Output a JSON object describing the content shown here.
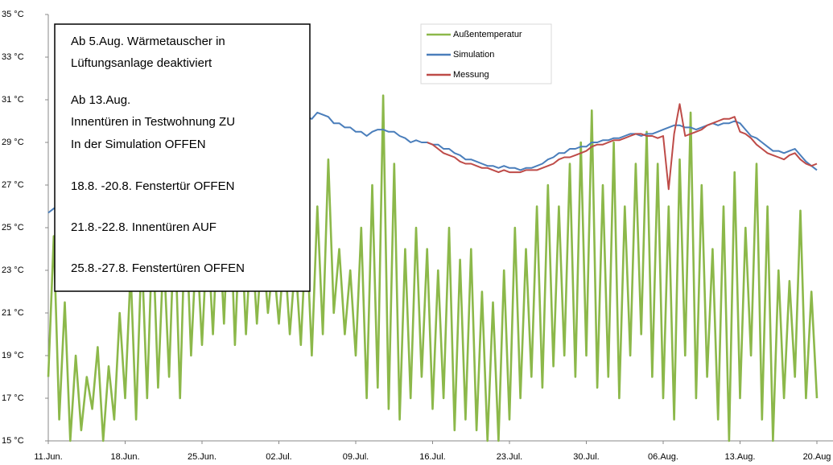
{
  "chart_data": {
    "type": "line",
    "annotations": [
      "Ab 5.Aug. Wärmetauscher in",
      "Lüftungsanlage deaktiviert",
      "Ab 13.Aug.",
      "Innentüren in Testwohnung ZU",
      "In der Simulation OFFEN",
      "18.8. -20.8. Fenstertür OFFEN",
      "21.8.-22.8. Innentüren AUF",
      "25.8.-27.8. Fenstertüren OFFEN"
    ],
    "x": [
      0,
      0.5,
      1,
      1.5,
      2,
      2.5,
      3,
      3.5,
      4,
      4.5,
      5,
      5.5,
      6,
      6.5,
      7,
      7.5,
      8,
      8.5,
      9,
      9.5,
      10,
      10.5,
      11,
      11.5,
      12,
      12.5,
      13,
      13.5,
      14,
      14.5,
      15,
      15.5,
      16,
      16.5,
      17,
      17.5,
      18,
      18.5,
      19,
      19.5,
      20,
      20.5,
      21,
      21.5,
      22,
      22.5,
      23,
      23.5,
      24,
      24.5,
      25,
      25.5,
      26,
      26.5,
      27,
      27.5,
      28,
      28.5,
      29,
      29.5,
      30,
      30.5,
      31,
      31.5,
      32,
      32.5,
      33,
      33.5,
      34,
      34.5,
      35,
      35.5,
      36,
      36.5,
      37,
      37.5,
      38,
      38.5,
      39,
      39.5,
      40,
      40.5,
      41,
      41.5,
      42,
      42.5,
      43,
      43.5,
      44,
      44.5,
      45,
      45.5,
      46,
      46.5,
      47,
      47.5,
      48,
      48.5,
      49,
      49.5,
      50,
      50.5,
      51,
      51.5,
      52,
      52.5,
      53,
      53.5,
      54,
      54.5,
      55,
      55.5,
      56,
      56.5,
      57,
      57.5,
      58,
      58.5,
      59,
      59.5,
      60,
      60.5,
      61,
      61.5,
      62,
      62.5,
      63,
      63.5,
      64,
      64.5,
      65,
      65.5,
      66,
      66.5,
      67,
      67.5,
      68,
      68.5,
      69,
      69.5,
      70
    ],
    "xlim": [
      0,
      70
    ],
    "xticks": [
      {
        "value": 0,
        "label": "11.Jun."
      },
      {
        "value": 7,
        "label": "18.Jun."
      },
      {
        "value": 14,
        "label": "25.Jun."
      },
      {
        "value": 21,
        "label": "02.Jul."
      },
      {
        "value": 28,
        "label": "09.Jul."
      },
      {
        "value": 35,
        "label": "16.Jul."
      },
      {
        "value": 42,
        "label": "23.Jul."
      },
      {
        "value": 49,
        "label": "30.Jul."
      },
      {
        "value": 56,
        "label": "06.Aug."
      },
      {
        "value": 63,
        "label": "13.Aug."
      },
      {
        "value": 70,
        "label": "20.Aug"
      }
    ],
    "ylim": [
      15,
      35
    ],
    "yticks": [
      {
        "value": 15,
        "label": "15 °C"
      },
      {
        "value": 17,
        "label": "17 °C"
      },
      {
        "value": 19,
        "label": "19 °C"
      },
      {
        "value": 21,
        "label": "21 °C"
      },
      {
        "value": 23,
        "label": "23 °C"
      },
      {
        "value": 25,
        "label": "25 °C"
      },
      {
        "value": 27,
        "label": "27 °C"
      },
      {
        "value": 29,
        "label": "29 °C"
      },
      {
        "value": 31,
        "label": "31 °C"
      },
      {
        "value": 33,
        "label": "33 °C"
      },
      {
        "value": 35,
        "label": "35 °C"
      }
    ],
    "series": [
      {
        "name": "Außentemperatur",
        "color": "#8cb84a",
        "values": [
          18,
          24.6,
          16,
          21.5,
          15,
          19,
          15.5,
          18,
          16.5,
          19.4,
          15,
          18.5,
          16,
          21,
          17,
          23,
          16,
          24,
          17,
          25,
          17.5,
          24,
          18,
          25.5,
          17,
          26,
          19,
          24.5,
          19.5,
          25,
          20,
          26,
          20.5,
          27,
          19.5,
          26,
          20,
          25,
          20.5,
          24.5,
          21,
          23.5,
          20.5,
          24,
          20,
          23.5,
          19.5,
          25,
          19,
          26,
          20,
          28.2,
          21,
          24,
          20,
          23,
          19,
          25,
          17,
          27,
          17.5,
          31.2,
          16.5,
          28,
          16,
          24,
          17,
          25,
          18,
          24,
          16.5,
          23,
          17,
          25,
          15.5,
          23.5,
          16,
          24,
          15.5,
          22,
          15,
          21.5,
          15,
          23,
          16,
          25,
          17,
          24,
          18,
          26,
          17.5,
          27,
          18.5,
          26,
          19,
          28,
          18,
          29,
          19,
          30.5,
          17.5,
          27,
          18,
          29,
          17,
          26,
          19,
          28,
          20,
          29.5,
          18,
          28,
          17,
          26,
          16,
          28.2,
          19,
          30.4,
          17,
          27,
          18,
          24,
          16,
          26,
          15,
          27.6,
          17,
          25,
          19,
          28,
          16,
          26,
          15,
          23,
          17,
          22.5,
          18,
          25.8,
          17,
          22,
          17
        ]
      },
      {
        "name": "Simulation",
        "color": "#4a7ebb",
        "values": [
          25.7,
          25.9,
          26,
          26.2,
          26.3,
          26.4,
          26.5,
          26.7,
          26.8,
          26.9,
          27,
          27.2,
          27.3,
          27.4,
          27.5,
          27.7,
          27.8,
          27.9,
          28,
          28.1,
          28.2,
          28.3,
          28.4,
          28.5,
          28.6,
          28.7,
          28.8,
          28.9,
          29,
          29.1,
          29.2,
          29.3,
          29.4,
          29.5,
          29.5,
          29.6,
          29.6,
          29.7,
          29.7,
          29.8,
          29.8,
          29.9,
          29.9,
          30,
          30,
          30.1,
          30.1,
          30.2,
          30.1,
          30.4,
          30.3,
          30.2,
          29.9,
          29.9,
          29.7,
          29.7,
          29.5,
          29.5,
          29.3,
          29.5,
          29.6,
          29.6,
          29.5,
          29.5,
          29.3,
          29.2,
          29.0,
          29.1,
          29.0,
          29.0,
          28.9,
          28.9,
          28.7,
          28.7,
          28.5,
          28.4,
          28.2,
          28.2,
          28.1,
          28.0,
          27.9,
          27.9,
          27.8,
          27.9,
          27.8,
          27.8,
          27.7,
          27.8,
          27.8,
          27.9,
          28.0,
          28.2,
          28.3,
          28.5,
          28.5,
          28.7,
          28.7,
          28.8,
          28.8,
          29.0,
          29.0,
          29.1,
          29.1,
          29.2,
          29.2,
          29.3,
          29.4,
          29.4,
          29.3,
          29.4,
          29.4,
          29.5,
          29.6,
          29.7,
          29.8,
          29.8,
          29.7,
          29.7,
          29.6,
          29.7,
          29.8,
          29.9,
          29.8,
          29.9,
          29.9,
          30.0,
          29.9,
          29.6,
          29.3,
          29.2,
          29.0,
          28.8,
          28.6,
          28.6,
          28.5,
          28.6,
          28.7,
          28.4,
          28.1,
          27.9,
          27.7
        ]
      },
      {
        "name": "Messung",
        "color": "#be4b48",
        "values": [
          null,
          null,
          null,
          null,
          null,
          null,
          null,
          null,
          null,
          null,
          null,
          null,
          null,
          null,
          null,
          null,
          null,
          null,
          null,
          null,
          null,
          null,
          null,
          null,
          null,
          null,
          null,
          null,
          null,
          null,
          null,
          null,
          null,
          null,
          null,
          null,
          null,
          null,
          null,
          null,
          null,
          null,
          null,
          null,
          null,
          null,
          null,
          null,
          null,
          null,
          null,
          null,
          null,
          null,
          null,
          null,
          null,
          null,
          null,
          null,
          null,
          null,
          null,
          null,
          null,
          null,
          null,
          null,
          null,
          29.0,
          28.9,
          28.7,
          28.5,
          28.4,
          28.3,
          28.1,
          28.0,
          28.0,
          27.9,
          27.8,
          27.8,
          27.7,
          27.6,
          27.7,
          27.6,
          27.6,
          27.6,
          27.7,
          27.7,
          27.7,
          27.8,
          27.9,
          28.0,
          28.2,
          28.3,
          28.3,
          28.4,
          28.5,
          28.6,
          28.8,
          28.9,
          28.9,
          29.0,
          29.1,
          29.1,
          29.2,
          29.3,
          29.4,
          29.4,
          29.3,
          29.3,
          29.2,
          29.3,
          26.8,
          29.4,
          30.8,
          29.3,
          29.4,
          29.5,
          29.6,
          29.8,
          29.9,
          30.0,
          30.1,
          30.1,
          30.2,
          29.5,
          29.4,
          29.2,
          28.9,
          28.7,
          28.5,
          28.4,
          28.3,
          28.2,
          28.4,
          28.5,
          28.2,
          28.0,
          27.9,
          28.0
        ]
      }
    ]
  }
}
